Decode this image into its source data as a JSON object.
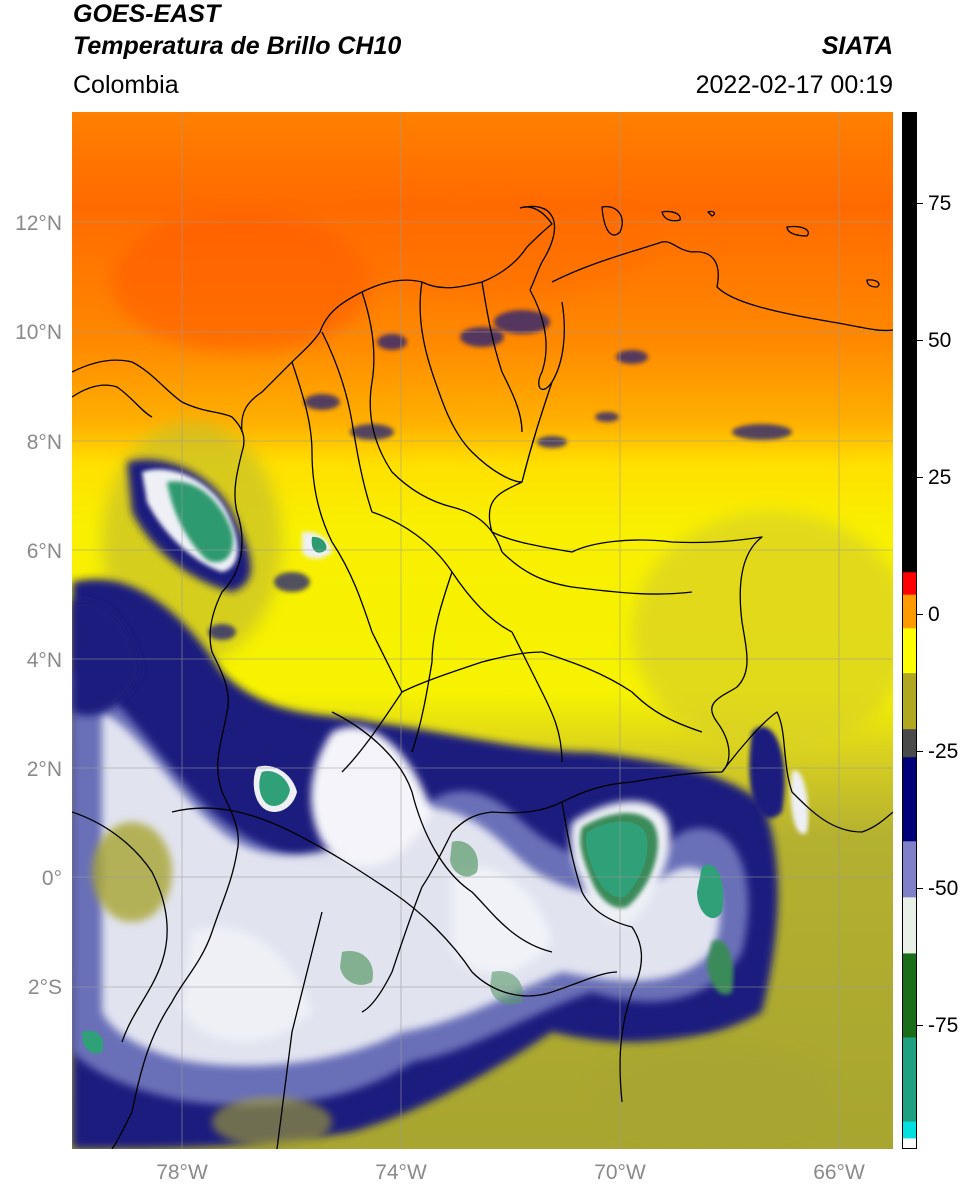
{
  "header": {
    "satellite": "GOES-EAST",
    "product": "Temperatura de Brillo CH10",
    "region": "Colombia",
    "organization": "SIATA",
    "timestamp": "2022-02-17 00:19"
  },
  "map": {
    "lat_labels": [
      "12°N",
      "10°N",
      "8°N",
      "6°N",
      "4°N",
      "2°N",
      "0°",
      "2°S"
    ],
    "lon_labels": [
      "78°W",
      "74°W",
      "70°W",
      "66°W"
    ],
    "extent": {
      "lon_min": -80.0,
      "lon_max": -65.1,
      "lat_min": -5.2,
      "lat_max": 14.0
    },
    "grid": true,
    "basemap": "brightness temperature imagery with country and department borders"
  },
  "colorbar": {
    "tick_labels": [
      "75",
      "50",
      "25",
      "0",
      "-25",
      "-50",
      "-75"
    ],
    "range": [
      -95,
      90
    ],
    "segments": [
      {
        "from": -95,
        "to": -93,
        "color": "#ffffff"
      },
      {
        "from": -93,
        "to": -90,
        "color": "#00e0e0"
      },
      {
        "from": -90,
        "to": -75,
        "color": "#1fa080"
      },
      {
        "from": -75,
        "to": -60,
        "color": "#1a6e1a"
      },
      {
        "from": -60,
        "to": -50,
        "color": "#e8f0e8"
      },
      {
        "from": -50,
        "to": -40,
        "color": "#8080c8"
      },
      {
        "from": -40,
        "to": -25,
        "color": "#000078"
      },
      {
        "from": -25,
        "to": -20,
        "color": "#4a4a4a"
      },
      {
        "from": -20,
        "to": -10,
        "color": "#b0a820"
      },
      {
        "from": -10,
        "to": -2,
        "color": "#ffff00"
      },
      {
        "from": -2,
        "to": 4,
        "color": "#ff9a00"
      },
      {
        "from": 4,
        "to": 8,
        "color": "#ff0000"
      },
      {
        "from": 8,
        "to": 90,
        "color": "#000000"
      }
    ]
  },
  "colors": {
    "cold_top_green": "#2e9a70",
    "cloud_white": "#f2f4f8",
    "cloud_navy": "#1c1e7e",
    "olive": "#a8a530",
    "yellow": "#f4f000",
    "orange": "#ff8800",
    "red_orange": "#ff5a00"
  }
}
